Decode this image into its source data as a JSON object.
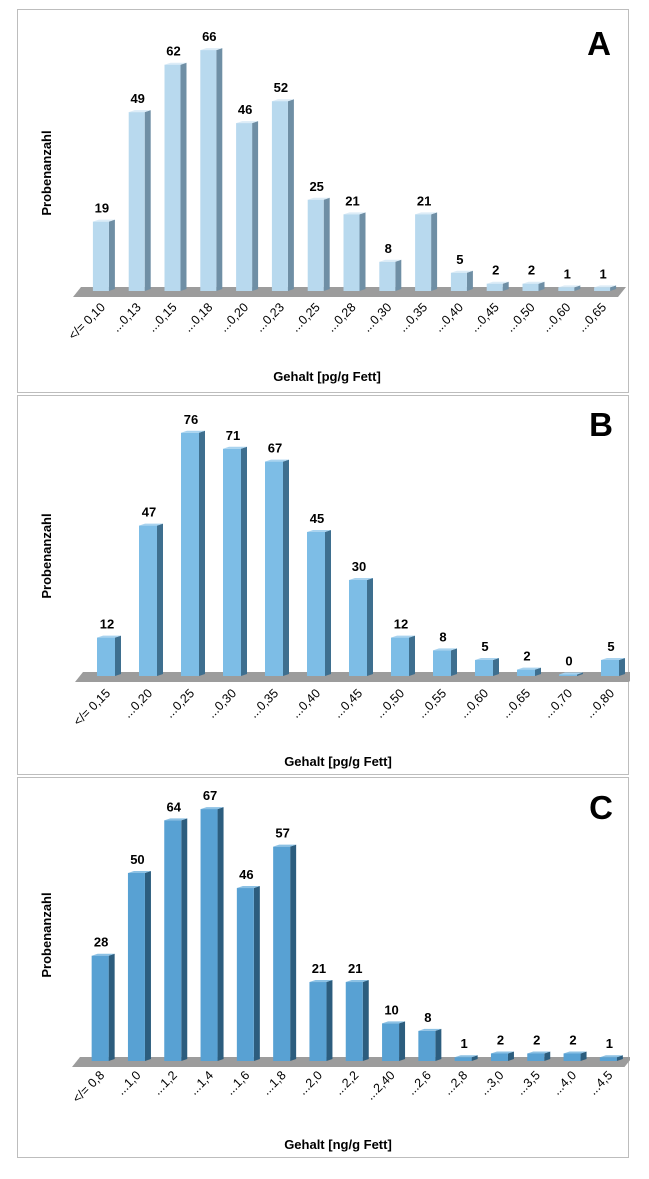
{
  "chart_data": [
    {
      "panel": "A",
      "type": "bar",
      "title": "A",
      "ylabel": "Probenanzahl",
      "xlabel": "Gehalt [pg/g Fett]",
      "categories": [
        "</= 0,10",
        "...0,13",
        "...0,15",
        "...0,18",
        "...0,20",
        "...0,23",
        "...0,25",
        "...0,28",
        "...0,30",
        "...0,35",
        "...0,40",
        "...0,45",
        "...0,50",
        "...0,60",
        "...0,65"
      ],
      "values": [
        19,
        49,
        62,
        66,
        46,
        52,
        25,
        21,
        8,
        21,
        5,
        2,
        2,
        1,
        1
      ],
      "colors": {
        "front": "#b8d9ee",
        "side": "#6f8fa5",
        "top": "#dcecf7"
      },
      "grid": false
    },
    {
      "panel": "B",
      "type": "bar",
      "title": "B",
      "ylabel": "Probenanzahl",
      "xlabel": "Gehalt [pg/g Fett]",
      "categories": [
        "</= 0,15",
        "...0,20",
        "...0,25",
        "...0,30",
        "...0,35",
        "...0,40",
        "...0,45",
        "...0,50",
        "...0,55",
        "...0,60",
        "...0,65",
        "...0,70",
        "...0,80"
      ],
      "values": [
        12,
        47,
        76,
        71,
        67,
        45,
        30,
        12,
        8,
        5,
        2,
        0,
        5
      ],
      "colors": {
        "front": "#7dbde6",
        "side": "#3e6f8f",
        "top": "#a9d3ef"
      },
      "grid": false
    },
    {
      "panel": "C",
      "type": "bar",
      "title": "C",
      "ylabel": "Probenanzahl",
      "xlabel": "Gehalt [ng/g Fett]",
      "categories": [
        "</= 0,8",
        "...1,0",
        "...1,2",
        "...1,4",
        "...1,6",
        "...1,8",
        "...2,0",
        "...2,2",
        "...2,40",
        "...2,6",
        "...2,8",
        "...3,0",
        "...3,5",
        "...4,0",
        "...4,5"
      ],
      "values": [
        28,
        50,
        64,
        67,
        46,
        57,
        21,
        21,
        10,
        8,
        1,
        2,
        2,
        2,
        1
      ],
      "colors": {
        "front": "#58a1d3",
        "side": "#2c5d7e",
        "top": "#8cc1e4"
      },
      "grid": false
    }
  ]
}
